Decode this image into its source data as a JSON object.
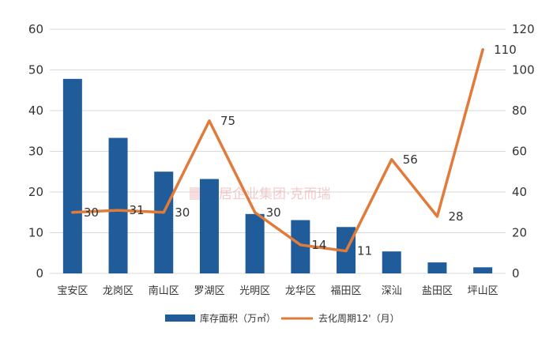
{
  "chart_data": {
    "type": "bar",
    "categories": [
      "宝安区",
      "龙岗区",
      "南山区",
      "罗湖区",
      "光明区",
      "龙华区",
      "福田区",
      "深汕",
      "盐田区",
      "坪山区"
    ],
    "series": [
      {
        "name": "库存面积（万㎡）",
        "type": "bar",
        "axis": "left",
        "values": [
          47.8,
          33.3,
          25.0,
          23.2,
          14.6,
          13.1,
          11.4,
          5.4,
          2.7,
          1.5
        ],
        "color": "#1f5c99"
      },
      {
        "name": "去化周期12'（月）",
        "type": "line",
        "axis": "right",
        "values": [
          30,
          31,
          30,
          75,
          30,
          14,
          11,
          56,
          28,
          110
        ],
        "data_labels": [
          "30",
          "31",
          "30",
          "75",
          "30",
          "14",
          "11",
          "56",
          "28",
          "110"
        ],
        "color": "#e07b39"
      }
    ],
    "ylim_left": [
      0,
      60
    ],
    "yticks_left": [
      "0",
      "10",
      "20",
      "30",
      "40",
      "50",
      "60"
    ],
    "ylim_right": [
      0,
      120
    ],
    "yticks_right": [
      "0",
      "20",
      "40",
      "60",
      "80",
      "100",
      "120"
    ],
    "grid": true,
    "legend": "bottom",
    "watermark": "易居企业集团·克而瑞"
  }
}
